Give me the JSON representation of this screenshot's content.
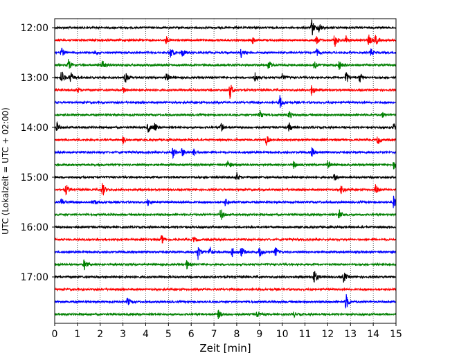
{
  "chart_data": {
    "type": "line",
    "title": "",
    "xlabel": "Zeit  [min]",
    "ylabel": "UTC (Lokalzeit = UTC + 02:00)",
    "xlim": [
      0,
      15
    ],
    "x_ticks": [
      0,
      1,
      2,
      3,
      4,
      5,
      6,
      7,
      8,
      9,
      10,
      11,
      12,
      13,
      14,
      15
    ],
    "x_tick_labels": [
      "0",
      "1",
      "2",
      "3",
      "4",
      "5",
      "6",
      "7",
      "8",
      "9",
      "10",
      "11",
      "12",
      "13",
      "14",
      "15"
    ],
    "y_tick_labels": [
      "12:00",
      "13:00",
      "14:00",
      "15:00",
      "16:00",
      "17:00"
    ],
    "grid": "vertical-dotted",
    "trace_interval_min": 15,
    "color_cycle": [
      "#000000",
      "#ff0000",
      "#0000ff",
      "#008000"
    ],
    "series": [
      {
        "start": "12:00",
        "bursts": [
          [
            11.3,
            1.0
          ],
          [
            11.6,
            0.6
          ]
        ]
      },
      {
        "start": "12:15",
        "bursts": [
          [
            4.9,
            0.4
          ],
          [
            8.7,
            0.4
          ],
          [
            11.5,
            0.5
          ],
          [
            12.3,
            0.8
          ],
          [
            12.8,
            0.5
          ],
          [
            13.8,
            0.6
          ],
          [
            14.1,
            0.6
          ]
        ]
      },
      {
        "start": "12:30",
        "bursts": [
          [
            0.3,
            0.5
          ],
          [
            1.8,
            0.3
          ],
          [
            5.1,
            0.6
          ],
          [
            5.6,
            0.5
          ],
          [
            8.2,
            0.5
          ],
          [
            11.5,
            0.4
          ],
          [
            13.9,
            0.4
          ]
        ]
      },
      {
        "start": "12:45",
        "bursts": [
          [
            0.6,
            0.6
          ],
          [
            2.1,
            0.6
          ],
          [
            9.4,
            0.6
          ],
          [
            11.4,
            0.4
          ],
          [
            12.5,
            0.5
          ]
        ]
      },
      {
        "start": "13:00",
        "bursts": [
          [
            0.3,
            0.8
          ],
          [
            0.7,
            0.6
          ],
          [
            3.1,
            0.6
          ],
          [
            4.9,
            0.5
          ],
          [
            8.8,
            0.6
          ],
          [
            10.0,
            0.4
          ],
          [
            12.8,
            0.8
          ],
          [
            13.4,
            0.6
          ]
        ]
      },
      {
        "start": "13:15",
        "bursts": [
          [
            1.0,
            0.3
          ],
          [
            3.0,
            0.4
          ],
          [
            7.7,
            0.9
          ],
          [
            11.3,
            0.6
          ]
        ]
      },
      {
        "start": "13:30",
        "bursts": [
          [
            9.9,
            0.7
          ]
        ]
      },
      {
        "start": "13:45",
        "bursts": [
          [
            9.0,
            0.6
          ],
          [
            10.3,
            0.5
          ],
          [
            14.4,
            0.3
          ]
        ]
      },
      {
        "start": "14:00",
        "bursts": [
          [
            0.1,
            0.5
          ],
          [
            4.1,
            0.6
          ],
          [
            4.4,
            0.5
          ],
          [
            7.3,
            0.5
          ],
          [
            10.3,
            0.5
          ],
          [
            14.9,
            0.4
          ]
        ]
      },
      {
        "start": "14:15",
        "bursts": [
          [
            3.0,
            0.4
          ],
          [
            9.3,
            0.6
          ],
          [
            14.2,
            0.5
          ]
        ]
      },
      {
        "start": "14:30",
        "bursts": [
          [
            5.2,
            0.6
          ],
          [
            5.6,
            0.5
          ],
          [
            6.1,
            0.4
          ],
          [
            11.3,
            0.5
          ]
        ]
      },
      {
        "start": "14:45",
        "bursts": [
          [
            7.6,
            0.6
          ],
          [
            10.5,
            0.4
          ],
          [
            12.0,
            0.4
          ],
          [
            14.9,
            0.5
          ]
        ]
      },
      {
        "start": "15:00",
        "bursts": [
          [
            8.0,
            0.5
          ],
          [
            12.3,
            0.4
          ]
        ]
      },
      {
        "start": "15:15",
        "bursts": [
          [
            0.5,
            0.6
          ],
          [
            2.1,
            0.8
          ],
          [
            12.6,
            0.6
          ],
          [
            14.1,
            0.6
          ]
        ]
      },
      {
        "start": "15:30",
        "bursts": [
          [
            0.3,
            0.4
          ],
          [
            1.7,
            0.4
          ],
          [
            4.1,
            0.4
          ],
          [
            7.5,
            0.4
          ],
          [
            14.9,
            0.8
          ]
        ]
      },
      {
        "start": "15:45",
        "bursts": [
          [
            7.3,
            0.7
          ],
          [
            12.5,
            0.6
          ]
        ]
      },
      {
        "start": "16:00",
        "bursts": []
      },
      {
        "start": "16:15",
        "bursts": [
          [
            4.7,
            0.5
          ],
          [
            6.1,
            0.3
          ]
        ]
      },
      {
        "start": "16:30",
        "bursts": [
          [
            6.3,
            0.8
          ],
          [
            6.8,
            0.6
          ],
          [
            7.8,
            0.5
          ],
          [
            8.2,
            0.6
          ],
          [
            9.0,
            0.6
          ],
          [
            9.7,
            0.6
          ]
        ]
      },
      {
        "start": "16:45",
        "bursts": [
          [
            1.3,
            0.6
          ],
          [
            5.8,
            0.5
          ]
        ]
      },
      {
        "start": "17:00",
        "bursts": [
          [
            11.4,
            0.9
          ],
          [
            12.7,
            0.6
          ]
        ]
      },
      {
        "start": "17:15",
        "bursts": []
      },
      {
        "start": "17:30",
        "bursts": [
          [
            3.2,
            0.5
          ],
          [
            12.8,
            0.9
          ]
        ]
      },
      {
        "start": "17:45",
        "bursts": [
          [
            7.2,
            0.5
          ],
          [
            8.9,
            0.3
          ],
          [
            10.5,
            0.3
          ]
        ]
      }
    ]
  }
}
